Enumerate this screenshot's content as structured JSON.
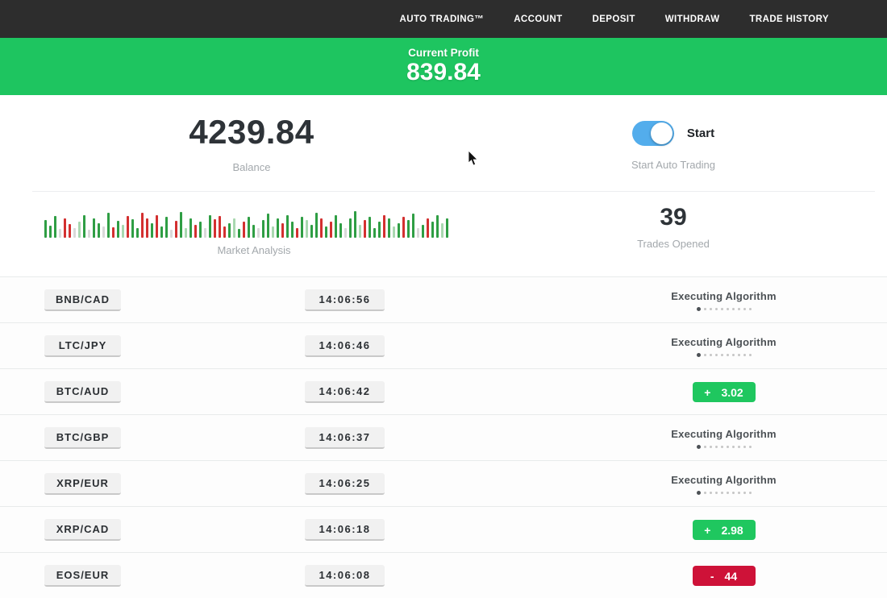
{
  "nav": {
    "items": [
      "AUTO TRADING™",
      "ACCOUNT",
      "DEPOSIT",
      "WITHDRAW",
      "TRADE HISTORY"
    ]
  },
  "profit_banner": {
    "label": "Current Profit",
    "value": "839.84",
    "bg": "#1ec560"
  },
  "stats": {
    "balance": {
      "value": "4239.84",
      "label": "Balance"
    },
    "auto_trading": {
      "toggle_label": "Start",
      "label": "Start Auto Trading",
      "state": "on",
      "toggle_color": "#53adec"
    },
    "market_analysis": {
      "label": "Market Analysis",
      "bar_colors": {
        "g": "#2f9e44",
        "r": "#d33030",
        "G": "#a9d8b0",
        "R": "#f0b1b1",
        "x": "#d9d9d9"
      },
      "bars": [
        [
          "g",
          22
        ],
        [
          "g",
          15
        ],
        [
          "g",
          27
        ],
        [
          "x",
          11
        ],
        [
          "r",
          24
        ],
        [
          "r",
          17
        ],
        [
          "x",
          12
        ],
        [
          "G",
          20
        ],
        [
          "g",
          28
        ],
        [
          "x",
          10
        ],
        [
          "g",
          24
        ],
        [
          "g",
          18
        ],
        [
          "x",
          14
        ],
        [
          "g",
          31
        ],
        [
          "r",
          13
        ],
        [
          "g",
          21
        ],
        [
          "G",
          16
        ],
        [
          "r",
          27
        ],
        [
          "g",
          23
        ],
        [
          "g",
          12
        ],
        [
          "r",
          31
        ],
        [
          "r",
          24
        ],
        [
          "g",
          18
        ],
        [
          "r",
          28
        ],
        [
          "g",
          14
        ],
        [
          "g",
          26
        ],
        [
          "x",
          10
        ],
        [
          "r",
          21
        ],
        [
          "g",
          32
        ],
        [
          "G",
          12
        ],
        [
          "g",
          24
        ],
        [
          "r",
          16
        ],
        [
          "g",
          20
        ],
        [
          "x",
          12
        ],
        [
          "g",
          28
        ],
        [
          "r",
          23
        ],
        [
          "r",
          27
        ],
        [
          "r",
          14
        ],
        [
          "g",
          18
        ],
        [
          "G",
          24
        ],
        [
          "g",
          11
        ],
        [
          "r",
          20
        ],
        [
          "g",
          26
        ],
        [
          "g",
          16
        ],
        [
          "x",
          12
        ],
        [
          "g",
          22
        ],
        [
          "g",
          30
        ],
        [
          "G",
          14
        ],
        [
          "g",
          24
        ],
        [
          "r",
          18
        ],
        [
          "g",
          28
        ],
        [
          "g",
          20
        ],
        [
          "r",
          12
        ],
        [
          "g",
          26
        ],
        [
          "G",
          22
        ],
        [
          "g",
          16
        ],
        [
          "g",
          31
        ],
        [
          "r",
          24
        ],
        [
          "g",
          14
        ],
        [
          "r",
          20
        ],
        [
          "g",
          28
        ],
        [
          "g",
          18
        ],
        [
          "x",
          12
        ],
        [
          "g",
          24
        ],
        [
          "g",
          33
        ],
        [
          "G",
          16
        ],
        [
          "r",
          22
        ],
        [
          "g",
          26
        ],
        [
          "g",
          12
        ],
        [
          "g",
          20
        ],
        [
          "r",
          28
        ],
        [
          "g",
          24
        ],
        [
          "G",
          14
        ],
        [
          "g",
          18
        ],
        [
          "r",
          26
        ],
        [
          "g",
          22
        ],
        [
          "g",
          30
        ],
        [
          "x",
          12
        ],
        [
          "g",
          16
        ],
        [
          "r",
          24
        ],
        [
          "g",
          20
        ],
        [
          "g",
          28
        ],
        [
          "G",
          18
        ],
        [
          "g",
          24
        ]
      ]
    },
    "trades_opened": {
      "value": "39",
      "label": "Trades Opened"
    }
  },
  "trades": [
    {
      "pair": "BNB/CAD",
      "time": "14:06:56",
      "status": "executing",
      "status_label": "Executing Algorithm"
    },
    {
      "pair": "LTC/JPY",
      "time": "14:06:46",
      "status": "executing",
      "status_label": "Executing Algorithm"
    },
    {
      "pair": "BTC/AUD",
      "time": "14:06:42",
      "status": "profit",
      "sign": "+",
      "result": "3.02"
    },
    {
      "pair": "BTC/GBP",
      "time": "14:06:37",
      "status": "executing",
      "status_label": "Executing Algorithm"
    },
    {
      "pair": "XRP/EUR",
      "time": "14:06:25",
      "status": "executing",
      "status_label": "Executing Algorithm"
    },
    {
      "pair": "XRP/CAD",
      "time": "14:06:18",
      "status": "profit",
      "sign": "+",
      "result": "2.98"
    },
    {
      "pair": "EOS/EUR",
      "time": "14:06:08",
      "status": "loss",
      "sign": "-",
      "result": "44"
    }
  ],
  "status_colors": {
    "profit": "#1fc75f",
    "loss": "#ce1238"
  },
  "progress_dots": {
    "count": 10,
    "active_index": 0
  }
}
